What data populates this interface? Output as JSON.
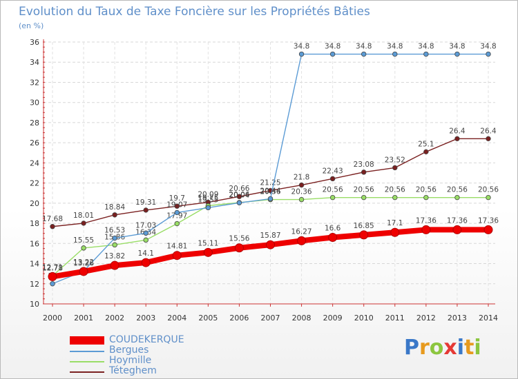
{
  "title": "Evolution du Taux de Taxe Foncière sur les Propriétés Bâties",
  "subtitle": "(en %)",
  "logo": {
    "letters": [
      "P",
      "r",
      "o",
      "x",
      "i",
      "t",
      "i"
    ],
    "colors": [
      "#3a78c8",
      "#e79a1e",
      "#8cc63f",
      "#e53935",
      "#3a78c8",
      "#e79a1e",
      "#8cc63f"
    ]
  },
  "chart_data": {
    "type": "line",
    "title": "Evolution du Taux de Taxe Foncière sur les Propriétés Bâties",
    "ylabel": "(en %)",
    "xlabel": "",
    "ylim": [
      10,
      36
    ],
    "yticks": [
      10,
      12,
      14,
      16,
      18,
      20,
      22,
      24,
      26,
      28,
      30,
      32,
      34,
      36
    ],
    "categories": [
      "2000",
      "2001",
      "2002",
      "2003",
      "2004",
      "2005",
      "2006",
      "2007",
      "2008",
      "2009",
      "2010",
      "2011",
      "2012",
      "2013",
      "2014"
    ],
    "grid": true,
    "legend_position": "bottom-left",
    "series": [
      {
        "name": "Téteghem",
        "color": "#7a2020",
        "values": [
          17.68,
          18.01,
          18.84,
          19.31,
          19.7,
          20.09,
          20.66,
          21.25,
          21.8,
          22.43,
          23.08,
          23.52,
          25.1,
          26.4,
          26.4
        ],
        "labels": [
          "17.68",
          "18.01",
          "18.84",
          "19.31",
          "19.7",
          "20.09",
          "20.66",
          "21.25",
          "21.8",
          "22.43",
          "23.08",
          "23.52",
          "25.1",
          "26.4",
          "26.4"
        ]
      },
      {
        "name": "Hoymille",
        "color": "#99dd66",
        "values": [
          12.78,
          15.55,
          15.86,
          16.34,
          17.97,
          19.75,
          20.06,
          20.36,
          20.36,
          20.56,
          20.56,
          20.56,
          20.56,
          20.56,
          20.56
        ],
        "labels": [
          "12.78",
          "15.55",
          "15.86",
          "16.34",
          "17.97",
          "19.75",
          "20.06",
          "20.36",
          "20.36",
          "20.56",
          "20.56",
          "20.56",
          "20.56",
          "20.56",
          "20.56"
        ]
      },
      {
        "name": "Bergues",
        "color": "#5b9bd5",
        "values": [
          12.0,
          13.26,
          16.53,
          17.03,
          19.07,
          19.55,
          20.04,
          20.44,
          34.8,
          34.8,
          34.8,
          34.8,
          34.8,
          34.8,
          34.8
        ],
        "labels": [
          "12",
          "13.26",
          "16.53",
          "17.03",
          "19.07",
          "19.55",
          "20.04",
          "20.44",
          "34.8",
          "34.8",
          "34.8",
          "34.8",
          "34.8",
          "34.8",
          "34.8"
        ]
      },
      {
        "name": "COUDEKERQUE",
        "color": "#ee0000",
        "values": [
          12.71,
          13.22,
          13.82,
          14.1,
          14.81,
          15.11,
          15.56,
          15.87,
          16.27,
          16.6,
          16.85,
          17.1,
          17.36,
          17.36,
          17.36
        ],
        "labels": [
          "12.71",
          "13.22",
          "13.82",
          "14.1",
          "14.81",
          "15.11",
          "15.56",
          "15.87",
          "16.27",
          "16.6",
          "16.85",
          "17.1",
          "17.36",
          "17.36",
          "17.36"
        ]
      }
    ],
    "legend": [
      "COUDEKERQUE",
      "Bergues",
      "Hoymille",
      "Téteghem"
    ]
  }
}
